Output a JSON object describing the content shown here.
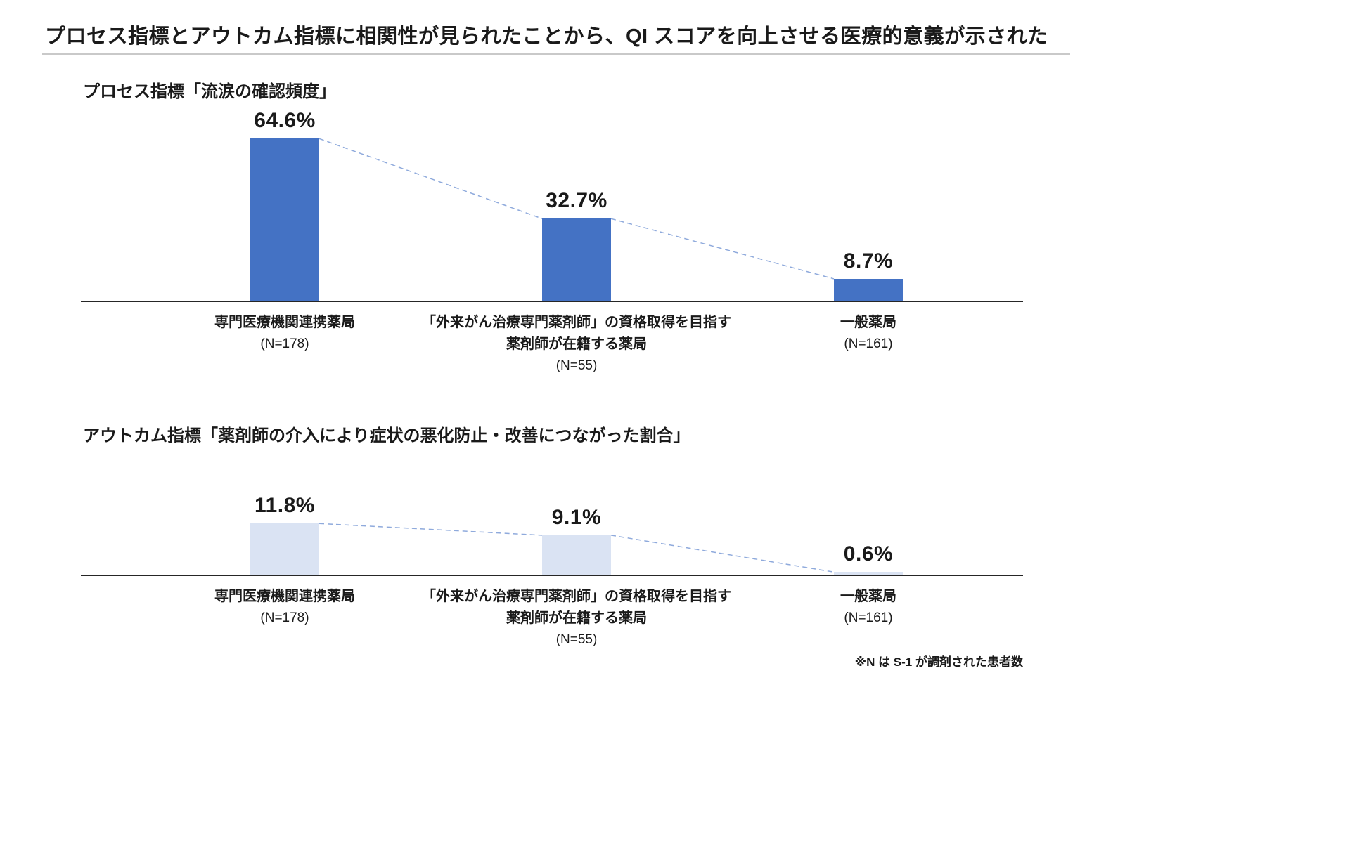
{
  "page": {
    "title": "プロセス指標とアウトカム指標に相関性が見られたことから、QI スコアを向上させる医療的意義が示された",
    "footnote": "※N は S-1 が調剤された患者数"
  },
  "colors": {
    "bar_primary": "#4472C4",
    "bar_secondary": "#DAE3F3",
    "connector": "#8FAADC",
    "axis": "#262626"
  },
  "chart_data": [
    {
      "type": "bar",
      "title": "プロセス指標「流涙の確認頻度」",
      "categories": [
        [
          "専門医療機関連携薬局",
          "(N=178)"
        ],
        [
          "「外来がん治療専門薬剤師」の資格取得を目指す",
          "薬剤師が在籍する薬局",
          "(N=55)"
        ],
        [
          "一般薬局",
          "(N=161)"
        ]
      ],
      "values": [
        64.6,
        32.7,
        8.7
      ],
      "value_labels": [
        "64.6%",
        "32.7%",
        "8.7%"
      ],
      "ylim": [
        0,
        70
      ],
      "bar_color": "#4472C4",
      "grid": false,
      "legend": false,
      "trend_line": "dashed"
    },
    {
      "type": "bar",
      "title": "アウトカム指標「薬剤師の介入により症状の悪化防止・改善につながった割合」",
      "categories": [
        [
          "専門医療機関連携薬局",
          "(N=178)"
        ],
        [
          "「外来がん治療専門薬剤師」の資格取得を目指す",
          "薬剤師が在籍する薬局",
          "(N=55)"
        ],
        [
          "一般薬局",
          "(N=161)"
        ]
      ],
      "values": [
        11.8,
        9.1,
        0.6
      ],
      "value_labels": [
        "11.8%",
        "9.1%",
        "0.6%"
      ],
      "ylim": [
        0,
        12
      ],
      "bar_color": "#DAE3F3",
      "grid": false,
      "legend": false,
      "trend_line": "dashed"
    }
  ]
}
